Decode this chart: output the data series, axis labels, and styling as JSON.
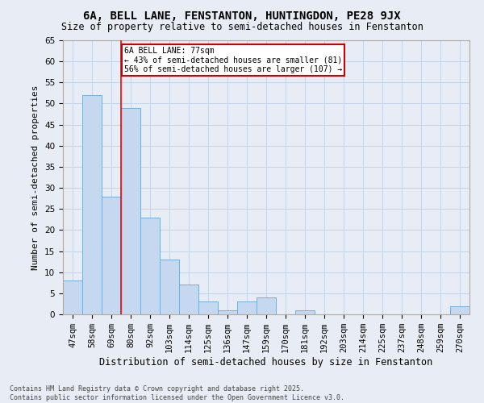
{
  "title": "6A, BELL LANE, FENSTANTON, HUNTINGDON, PE28 9JX",
  "subtitle": "Size of property relative to semi-detached houses in Fenstanton",
  "xlabel": "Distribution of semi-detached houses by size in Fenstanton",
  "ylabel": "Number of semi-detached properties",
  "categories": [
    "47sqm",
    "58sqm",
    "69sqm",
    "80sqm",
    "92sqm",
    "103sqm",
    "114sqm",
    "125sqm",
    "136sqm",
    "147sqm",
    "159sqm",
    "170sqm",
    "181sqm",
    "192sqm",
    "203sqm",
    "214sqm",
    "225sqm",
    "237sqm",
    "248sqm",
    "259sqm",
    "270sqm"
  ],
  "values": [
    8,
    52,
    28,
    49,
    23,
    13,
    7,
    3,
    1,
    3,
    4,
    0,
    1,
    0,
    0,
    0,
    0,
    0,
    0,
    0,
    2
  ],
  "bar_color": "#c5d8ef",
  "bar_edge_color": "#7aadd4",
  "grid_color": "#c8d4e8",
  "background_color": "#e8edf5",
  "red_line_index": 3,
  "annotation_text": "6A BELL LANE: 77sqm\n← 43% of semi-detached houses are smaller (81)\n56% of semi-detached houses are larger (107) →",
  "annotation_box_facecolor": "#ffffff",
  "annotation_box_edgecolor": "#cc0000",
  "footer_text": "Contains HM Land Registry data © Crown copyright and database right 2025.\nContains public sector information licensed under the Open Government Licence v3.0.",
  "ylim": [
    0,
    65
  ],
  "yticks": [
    0,
    5,
    10,
    15,
    20,
    25,
    30,
    35,
    40,
    45,
    50,
    55,
    60,
    65
  ],
  "title_fontsize": 10,
  "subtitle_fontsize": 8.5,
  "tick_fontsize": 7.5,
  "ylabel_fontsize": 8,
  "xlabel_fontsize": 8.5,
  "footer_fontsize": 6
}
